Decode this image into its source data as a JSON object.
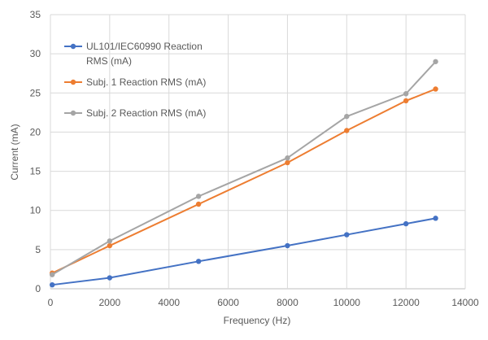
{
  "chart_data": {
    "type": "line",
    "title": "",
    "xlabel": "Frequency (Hz)",
    "ylabel": "Current (mA)",
    "xlim": [
      0,
      14000
    ],
    "ylim": [
      0,
      35
    ],
    "xticks": [
      0,
      2000,
      4000,
      6000,
      8000,
      10000,
      12000,
      14000
    ],
    "yticks": [
      0,
      5,
      10,
      15,
      20,
      25,
      30,
      35
    ],
    "grid": true,
    "legend": "top-left",
    "x": [
      60,
      2000,
      5000,
      8000,
      10000,
      12000,
      13000
    ],
    "series": [
      {
        "name": "UL101/IEC60990 Reaction RMS (mA)",
        "name_lines": [
          "UL101/IEC60990 Reaction",
          "RMS (mA)"
        ],
        "color": "#4472C4",
        "values": [
          0.5,
          1.4,
          3.5,
          5.5,
          6.9,
          8.3,
          9.0
        ]
      },
      {
        "name": "Subj. 1 Reaction RMS (mA)",
        "name_lines": [
          "Subj. 1 Reaction RMS (mA)"
        ],
        "color": "#ED7D31",
        "values": [
          2.0,
          5.5,
          10.8,
          16.1,
          20.2,
          24.0,
          25.5
        ]
      },
      {
        "name": "Subj. 2 Reaction RMS (mA)",
        "name_lines": [
          "Subj. 2 Reaction RMS (mA)"
        ],
        "color": "#A5A5A5",
        "values": [
          1.8,
          6.1,
          11.8,
          16.7,
          22.0,
          24.9,
          29.0
        ]
      }
    ]
  }
}
